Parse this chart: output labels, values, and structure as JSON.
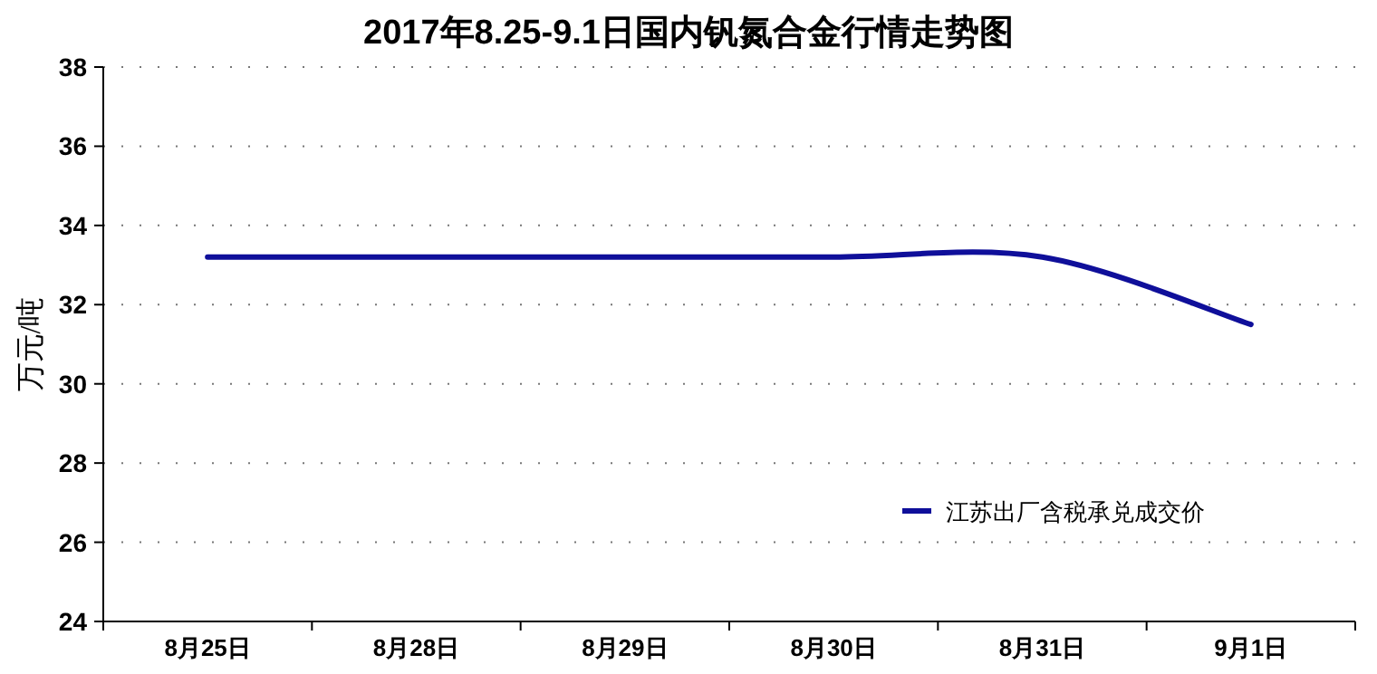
{
  "chart_data": {
    "type": "line",
    "title": "2017年8.25-9.1日国内钒氮合金行情走势图",
    "ylabel": "万元/吨",
    "categories": [
      "8月25日",
      "8月28日",
      "8月29日",
      "8月30日",
      "8月31日",
      "9月1日"
    ],
    "series": [
      {
        "name": "江苏出厂含税承兑成交价",
        "color": "#0f0f9a",
        "values": [
          33.2,
          33.2,
          33.2,
          33.2,
          33.2,
          31.5
        ]
      }
    ],
    "ylim": [
      24,
      38
    ],
    "yticks": [
      24,
      26,
      28,
      30,
      32,
      34,
      36,
      38
    ],
    "grid": "y",
    "legend": "bottom right",
    "marker": "none",
    "line_style": "solid"
  }
}
